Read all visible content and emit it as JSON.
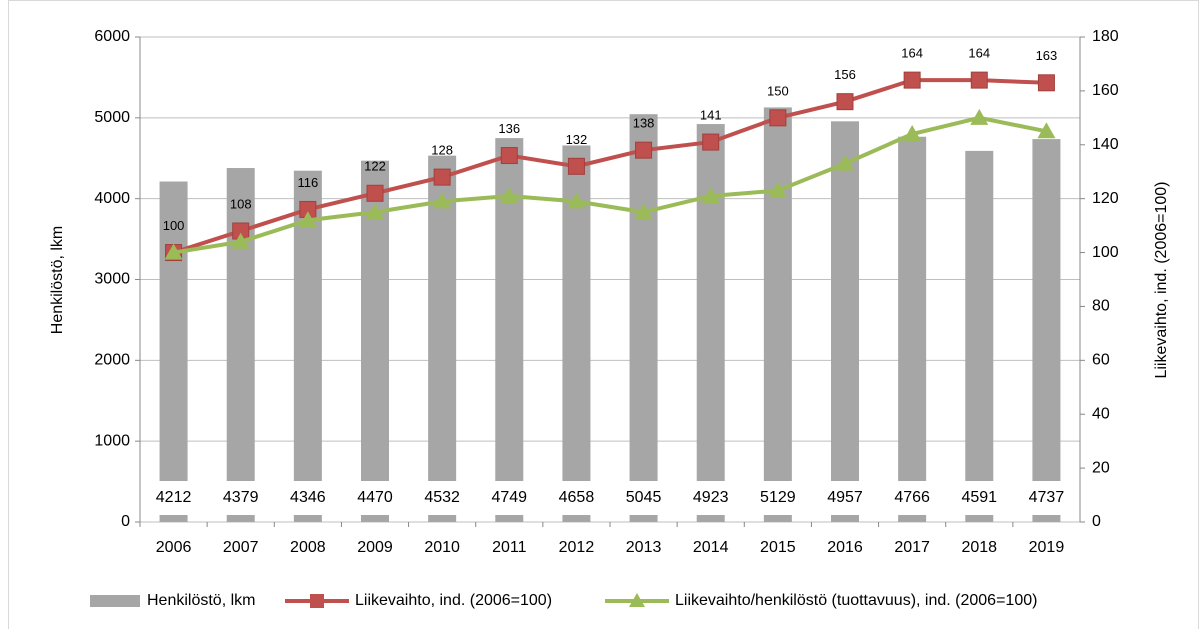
{
  "chart_data": {
    "type": "combo",
    "categories": [
      "2006",
      "2007",
      "2008",
      "2009",
      "2010",
      "2011",
      "2012",
      "2013",
      "2014",
      "2015",
      "2016",
      "2017",
      "2018",
      "2019"
    ],
    "series": [
      {
        "name": "Henkilöstö, lkm",
        "type": "bar",
        "axis": "y",
        "color": "#a6a6a6",
        "values": [
          4212,
          4379,
          4346,
          4470,
          4532,
          4749,
          4658,
          5045,
          4923,
          5129,
          4957,
          4766,
          4591,
          4737
        ]
      },
      {
        "name": "Liikevaihto, ind. (2006=100)",
        "type": "line",
        "axis": "y2",
        "color": "#c0504d",
        "marker": "square",
        "values": [
          100,
          108,
          116,
          122,
          128,
          136,
          132,
          138,
          141,
          150,
          156,
          164,
          164,
          163
        ]
      },
      {
        "name": "Liikevaihto/henkilöstö (tuottavuus), ind. (2006=100)",
        "type": "line",
        "axis": "y2",
        "color": "#9bbb59",
        "marker": "triangle",
        "values": [
          100,
          104,
          112,
          115,
          119,
          121,
          119,
          115,
          121,
          123,
          133,
          144,
          150,
          145
        ]
      }
    ],
    "ylabel": "Henkilöstö, lkm",
    "y2label": "Liikevaihto, ind. (2006=100)",
    "ylim": [
      0,
      6000
    ],
    "yticks": [
      0,
      1000,
      2000,
      3000,
      4000,
      5000,
      6000
    ],
    "y2lim": [
      0,
      180
    ],
    "y2ticks": [
      0,
      20,
      40,
      60,
      80,
      100,
      120,
      140,
      160,
      180
    ],
    "grid": true,
    "legend": "bottom"
  }
}
